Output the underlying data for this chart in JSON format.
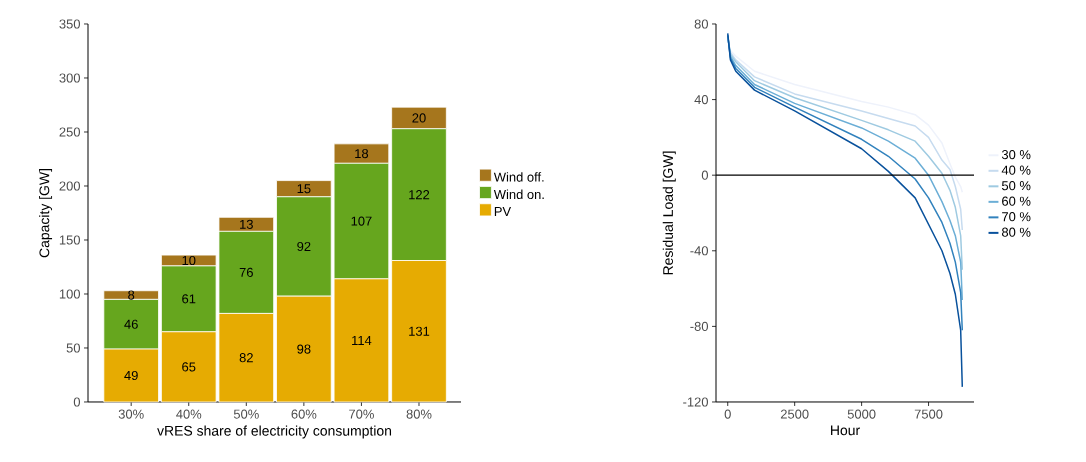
{
  "chart_data": [
    {
      "type": "bar",
      "stacked": true,
      "data_labels": true,
      "xlabel": "vRES share of electricity consumption",
      "ylabel": "Capacity [GW]",
      "categories": [
        "30%",
        "40%",
        "50%",
        "60%",
        "70%",
        "80%"
      ],
      "ylim": [
        0,
        350
      ],
      "yticks": [
        0,
        50,
        100,
        150,
        200,
        250,
        300,
        350
      ],
      "legend": "right",
      "series": [
        {
          "name": "PV",
          "color": "#e6ab02",
          "values": [
            49,
            65,
            82,
            98,
            114,
            131
          ]
        },
        {
          "name": "Wind on.",
          "color": "#66a61e",
          "values": [
            46,
            61,
            76,
            92,
            107,
            122
          ]
        },
        {
          "name": "Wind off.",
          "color": "#a6761d",
          "values": [
            8,
            10,
            13,
            15,
            18,
            20
          ]
        }
      ]
    },
    {
      "type": "line",
      "xlabel": "Hour",
      "ylabel": "Residual Load [GW]",
      "x": [
        0,
        100,
        300,
        1000,
        2500,
        5000,
        6000,
        7000,
        7500,
        8000,
        8300,
        8500,
        8700,
        8760
      ],
      "xlim": [
        -438,
        9198
      ],
      "xticks": [
        0,
        2500,
        5000,
        7500
      ],
      "ylim": [
        -120,
        80
      ],
      "yticks": [
        -120,
        -80,
        -40,
        0,
        40,
        80
      ],
      "legend": "right",
      "marker": "none",
      "line_style": "solid",
      "ref_lines": [
        {
          "axis": "y",
          "value": 0,
          "color": "#000000"
        }
      ],
      "series": [
        {
          "name": "30 %",
          "color": "#eef2fb",
          "values": [
            72,
            66,
            63,
            55,
            48,
            39,
            36,
            32,
            26.5,
            17,
            6,
            -1,
            -6,
            -9
          ]
        },
        {
          "name": "40 %",
          "color": "#c6dbef",
          "values": [
            72,
            65,
            61,
            52,
            43,
            34,
            30,
            26,
            20,
            8,
            3,
            -6,
            -18,
            -29
          ]
        },
        {
          "name": "50 %",
          "color": "#9ecae1",
          "values": [
            73,
            64,
            60,
            50,
            41,
            29,
            24,
            18,
            10,
            1,
            -8,
            -17,
            -32,
            -50
          ]
        },
        {
          "name": "60 %",
          "color": "#6baed6",
          "values": [
            74,
            63,
            58,
            48,
            38,
            25,
            18,
            9,
            0,
            -14,
            -24,
            -32,
            -46,
            -66
          ]
        },
        {
          "name": "70 %",
          "color": "#3182bd",
          "values": [
            74,
            62,
            56.5,
            46.5,
            36,
            19,
            10,
            -2,
            -12,
            -25,
            -36,
            -46,
            -62,
            -82
          ]
        },
        {
          "name": "80 %",
          "color": "#08519c",
          "values": [
            75,
            61,
            55,
            45,
            34,
            14,
            2,
            -12,
            -26,
            -40,
            -52,
            -63,
            -82,
            -112
          ]
        }
      ]
    }
  ]
}
